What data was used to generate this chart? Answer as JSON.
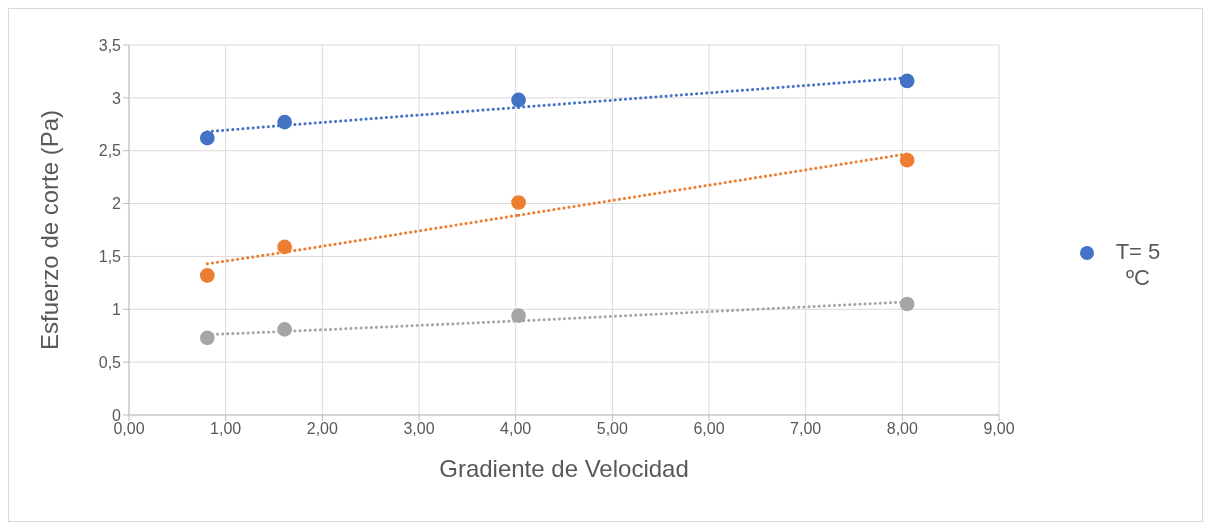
{
  "chart_data": {
    "type": "scatter",
    "xlabel": "Gradiente de Velocidad",
    "ylabel": "Esfuerzo de corte (Pa)",
    "x": [
      0.81,
      1.61,
      4.03,
      8.05
    ],
    "series": [
      {
        "name": "T= 5 ºC",
        "color": "#4472c4",
        "values": [
          2.62,
          2.77,
          2.98,
          3.16
        ]
      },
      {
        "color": "#ed7d31",
        "values": [
          1.32,
          1.59,
          2.01,
          2.41
        ]
      },
      {
        "color": "#a5a5a5",
        "values": [
          0.73,
          0.81,
          0.94,
          1.05
        ]
      },
      {
        "type": "line",
        "marker": "none",
        "line_style": "dotted",
        "color": "#4472c4",
        "values": [
          2.68,
          2.74,
          2.91,
          3.19
        ]
      },
      {
        "type": "line",
        "marker": "none",
        "line_style": "dotted",
        "color": "#ed7d31",
        "values": [
          1.43,
          1.54,
          1.89,
          2.47
        ]
      },
      {
        "type": "line",
        "marker": "none",
        "line_style": "dotted",
        "color": "#a5a5a5",
        "values": [
          0.76,
          0.79,
          0.89,
          1.07
        ]
      }
    ],
    "marker": "circle",
    "xlim": [
      0,
      9
    ],
    "xticks": [
      {
        "value": 0,
        "label": "0,00"
      },
      {
        "value": 1,
        "label": "1,00"
      },
      {
        "value": 2,
        "label": "2,00"
      },
      {
        "value": 3,
        "label": "3,00"
      },
      {
        "value": 4,
        "label": "4,00"
      },
      {
        "value": 5,
        "label": "5,00"
      },
      {
        "value": 6,
        "label": "6,00"
      },
      {
        "value": 7,
        "label": "7,00"
      },
      {
        "value": 8,
        "label": "8,00"
      },
      {
        "value": 9,
        "label": "9,00"
      }
    ],
    "ylim": [
      0,
      3.5
    ],
    "yticks": [
      0,
      {
        "value": 0.5,
        "label": "0,5"
      },
      1,
      {
        "value": 1.5,
        "label": "1,5"
      },
      2,
      {
        "value": 2.5,
        "label": "2,5"
      },
      3,
      {
        "value": 3.5,
        "label": "3,5"
      }
    ],
    "grid": true,
    "legend": "right"
  }
}
